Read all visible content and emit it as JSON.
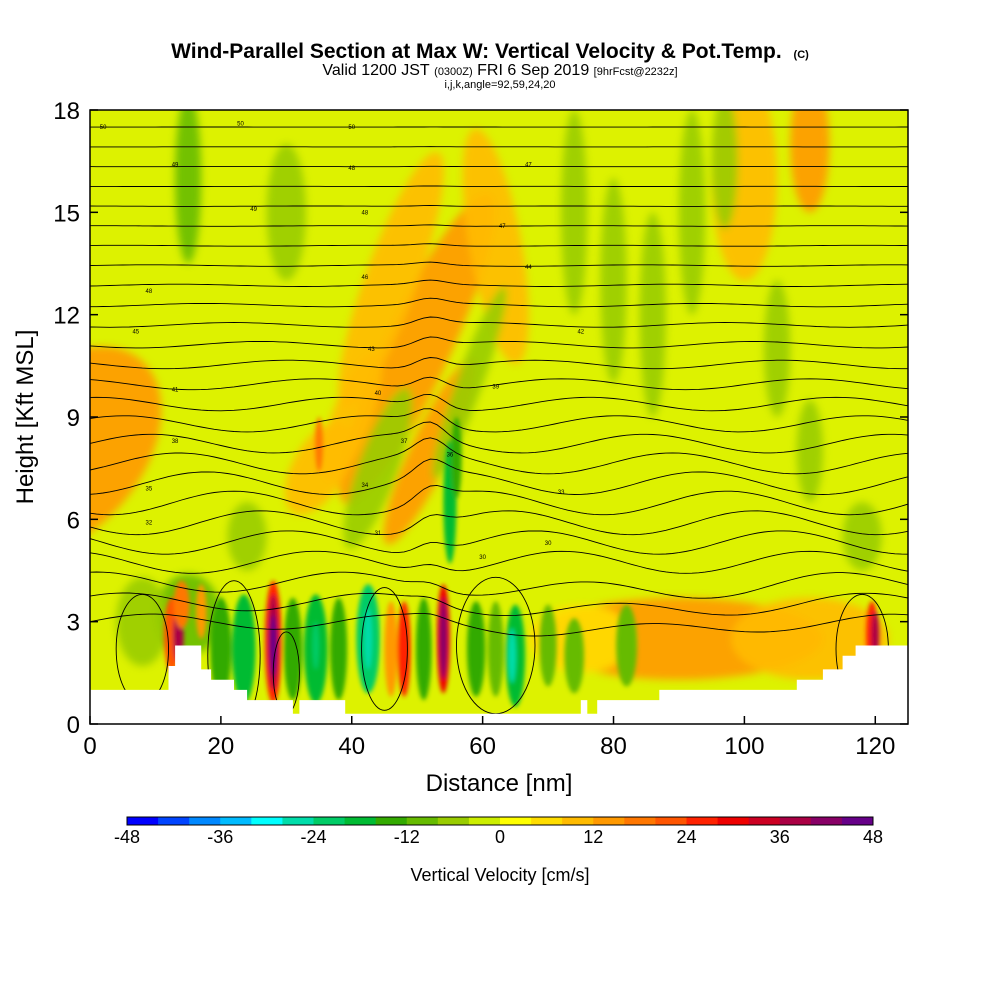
{
  "header": {
    "title_main": "Wind-Parallel Section at Max W: Vertical Velocity & Pot.Temp.",
    "title_mark": "(C)",
    "valid_a": "Valid 1200 JST",
    "valid_b": "(0300Z)",
    "valid_c": "FRI 6 Sep 2019",
    "valid_d": "[9hrFcst@2232z]",
    "params": "i,j,k,angle=92,59,24,20"
  },
  "chart_data": {
    "type": "heatmap",
    "title": "Wind-Parallel Section at Max W: Vertical Velocity & Pot.Temp.",
    "xlabel": "Distance [nm]",
    "ylabel": "Height [Kft MSL]",
    "xlim": [
      0,
      125
    ],
    "ylim": [
      0,
      18
    ],
    "x_ticks": [
      "0",
      "20",
      "40",
      "60",
      "80",
      "100",
      "120"
    ],
    "y_ticks": [
      "0",
      "3",
      "6",
      "9",
      "12",
      "15",
      "18"
    ],
    "grid": false,
    "colorbar": {
      "label": "Vertical Velocity [cm/s]",
      "ticks": [
        "-48",
        "-36",
        "-24",
        "-12",
        "0",
        "12",
        "24",
        "36",
        "48"
      ],
      "colors": [
        "#0000ff",
        "#0044ff",
        "#0088ff",
        "#00bbff",
        "#00ffff",
        "#00ddaa",
        "#00cc66",
        "#00bb33",
        "#33aa00",
        "#66bb00",
        "#99cc00",
        "#ccee00",
        "#ffff00",
        "#ffdd00",
        "#ffbb00",
        "#ff9900",
        "#ff7700",
        "#ff5500",
        "#ff2200",
        "#ee0000",
        "#cc0022",
        "#aa0044",
        "#880066",
        "#660088"
      ]
    },
    "theta_contour_labels": [
      "50",
      "50",
      "50",
      "49",
      "49",
      "48",
      "48",
      "48",
      "47",
      "47",
      "46",
      "44",
      "45",
      "43",
      "42",
      "41",
      "40",
      "39",
      "38",
      "37",
      "36",
      "35",
      "34",
      "33",
      "32",
      "31",
      "30",
      "30"
    ],
    "updrafts": [
      {
        "x": 13,
        "y_range": [
          1.5,
          3.5
        ],
        "w": 36
      },
      {
        "x": 28,
        "y_range": [
          0.5,
          4.0
        ],
        "w": 48
      },
      {
        "x": 54,
        "y_range": [
          0.5,
          3.8
        ],
        "w": 44
      },
      {
        "x": 48,
        "y_range": [
          0.5,
          3.5
        ],
        "w": 26
      },
      {
        "x": 120,
        "y_range": [
          1.5,
          3.5
        ],
        "w": 30
      }
    ],
    "downdrafts": [
      {
        "x": 23,
        "y_range": [
          1.0,
          3.5
        ],
        "w": -18
      },
      {
        "x": 34,
        "y_range": [
          0.5,
          3.8
        ],
        "w": -20
      },
      {
        "x": 43,
        "y_range": [
          0.5,
          3.5
        ],
        "w": -22
      },
      {
        "x": 55,
        "y_range": [
          4.5,
          8.5
        ],
        "w": -16
      },
      {
        "x": 65,
        "y_range": [
          0.5,
          3.2
        ],
        "w": -20
      }
    ]
  }
}
